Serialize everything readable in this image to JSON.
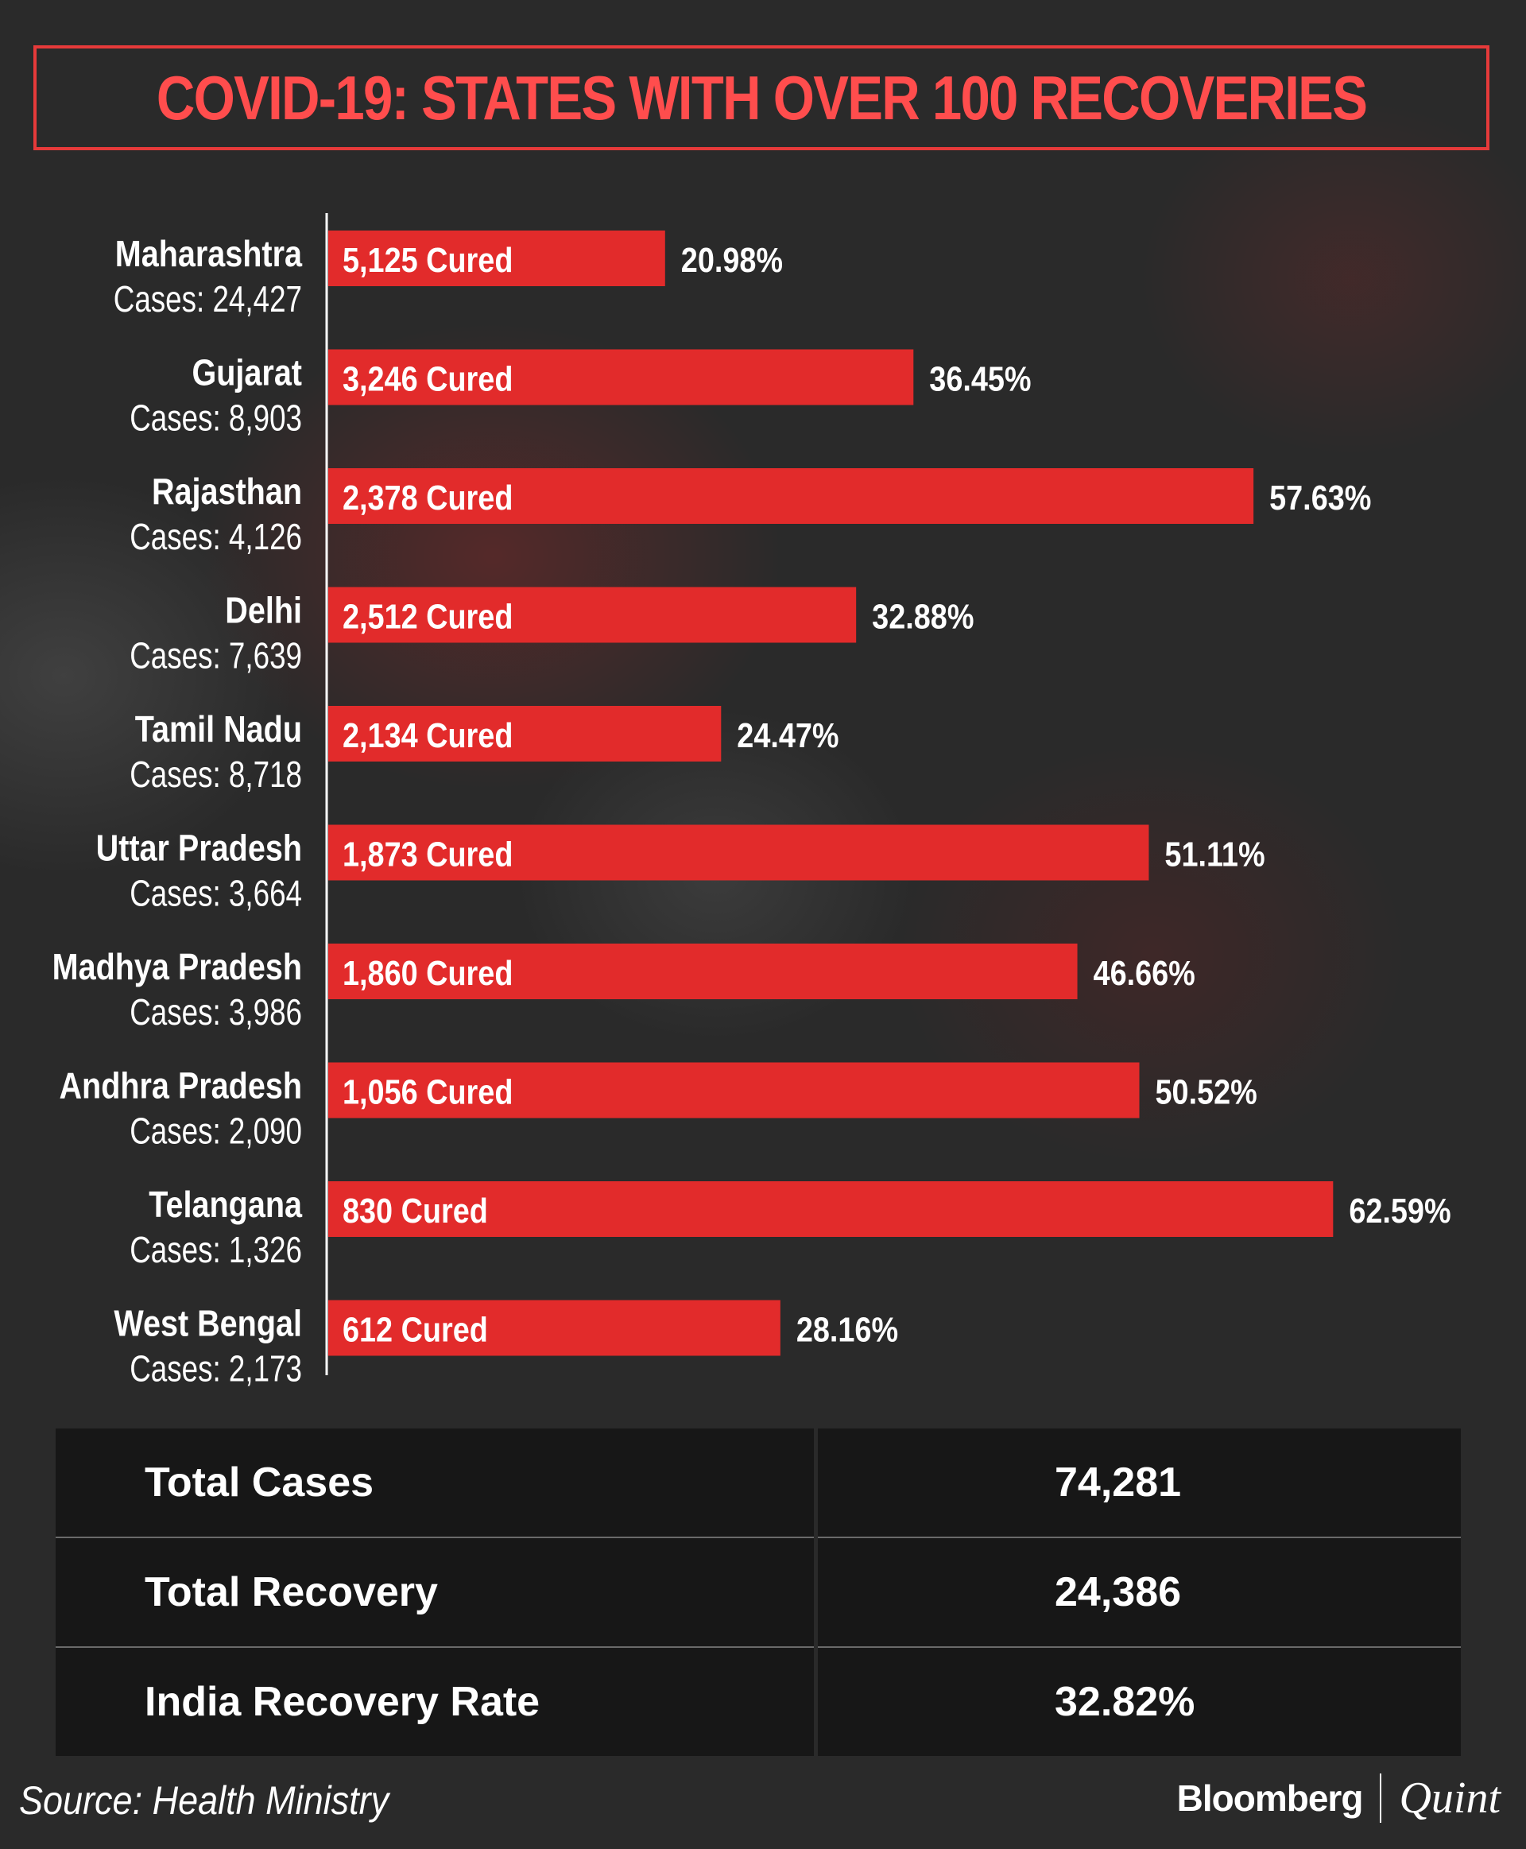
{
  "title": "COVID-19: STATES WITH OVER 100 RECOVERIES",
  "chart_data": {
    "type": "bar",
    "orientation": "horizontal",
    "title": "COVID-19: STATES WITH OVER 100 RECOVERIES",
    "value_unit": "recovery rate (%)",
    "xlim": [
      0,
      70
    ],
    "categories": [
      "Maharashtra",
      "Gujarat",
      "Rajasthan",
      "Delhi",
      "Tamil Nadu",
      "Uttar Pradesh",
      "Madhya Pradesh",
      "Andhra Pradesh",
      "Telangana",
      "West Bengal"
    ],
    "cases_labels": [
      "Cases: 24,427",
      "Cases: 8,903",
      "Cases: 4,126",
      "Cases: 7,639",
      "Cases: 8,718",
      "Cases: 3,664",
      "Cases: 3,986",
      "Cases: 2,090",
      "Cases: 1,326",
      "Cases: 2,173"
    ],
    "cured_labels": [
      "5,125 Cured",
      "3,246 Cured",
      "2,378 Cured",
      "2,512 Cured",
      "2,134 Cured",
      "1,873 Cured",
      "1,860 Cured",
      "1,056 Cured",
      "830 Cured",
      "612 Cured"
    ],
    "values": [
      20.98,
      36.45,
      57.63,
      32.88,
      24.47,
      51.11,
      46.66,
      50.52,
      62.59,
      28.16
    ],
    "value_labels": [
      "20.98%",
      "36.45%",
      "57.63%",
      "32.88%",
      "24.47%",
      "51.11%",
      "46.66%",
      "50.52%",
      "62.59%",
      "28.16%"
    ],
    "bar_color": "#e22b2b"
  },
  "totals": {
    "total_cases_label": "Total Cases",
    "total_cases_value": "74,281",
    "total_recovery_label": "Total Recovery",
    "total_recovery_value": "24,386",
    "recovery_rate_label": "India Recovery Rate",
    "recovery_rate_value": "32.82%"
  },
  "footer": {
    "source": "Source: Health Ministry",
    "brand_primary": "Bloomberg",
    "brand_secondary": "Quint"
  },
  "colors": {
    "accent": "#ff4d4d",
    "bar": "#e22b2b",
    "background": "#2a2a2a"
  }
}
